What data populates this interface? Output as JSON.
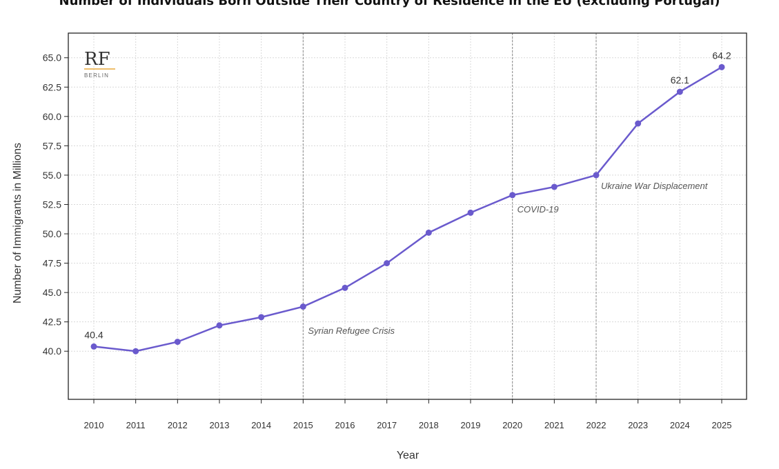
{
  "chart_data": {
    "type": "line",
    "title": "Number of Individuals Born Outside Their Country of Residence in the EU (excluding Portugal)",
    "xlabel": "Year",
    "ylabel": "Number of Immigrants in Millions",
    "x": [
      2010,
      2011,
      2012,
      2013,
      2014,
      2015,
      2016,
      2017,
      2018,
      2019,
      2020,
      2021,
      2022,
      2023,
      2024,
      2025
    ],
    "series": [
      {
        "values": [
          40.4,
          40.0,
          40.8,
          42.2,
          42.9,
          43.8,
          45.4,
          47.5,
          50.1,
          51.8,
          53.3,
          54.0,
          55.0,
          59.4,
          62.1,
          64.2
        ]
      }
    ],
    "ylim": [
      35.9,
      67.1
    ],
    "yticks": [
      "40.0",
      "42.5",
      "45.0",
      "47.5",
      "50.0",
      "52.5",
      "55.0",
      "57.5",
      "60.0",
      "62.5",
      "65.0"
    ],
    "grid": true,
    "line_color": "#6a5acd",
    "data_labels": [
      {
        "x": 2010,
        "text": "40.4"
      },
      {
        "x": 2024,
        "text": "62.1"
      },
      {
        "x": 2025,
        "text": "64.2"
      }
    ],
    "annotations": [
      {
        "x": 2015,
        "text": "Syrian Refugee Crisis"
      },
      {
        "x": 2020,
        "text": "COVID-19"
      },
      {
        "x": 2022,
        "text": "Ukraine War Displacement"
      }
    ]
  },
  "logo": {
    "main": "RF",
    "sub": "BERLIN",
    "accent": "#e8a838"
  }
}
